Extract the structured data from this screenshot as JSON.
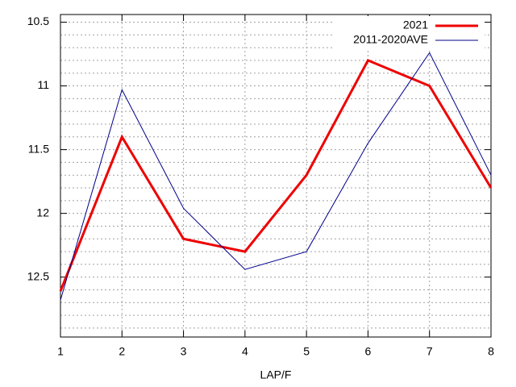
{
  "chart_data": {
    "type": "line",
    "x_label": "LAP/F",
    "x": [
      1,
      2,
      3,
      4,
      5,
      6,
      7,
      8
    ],
    "series": [
      {
        "name": "2021",
        "color": "#ee0000",
        "width": 3,
        "values": [
          12.61,
          11.4,
          12.2,
          12.3,
          11.7,
          10.8,
          11.0,
          11.8
        ]
      },
      {
        "name": "2011-2020AVE",
        "color": "#00008b",
        "width": 1,
        "values": [
          12.68,
          11.03,
          11.96,
          12.44,
          12.3,
          11.45,
          10.74,
          11.7
        ]
      }
    ],
    "xlim": [
      1,
      8
    ],
    "xticks": [
      1,
      2,
      3,
      4,
      5,
      6,
      7,
      8
    ],
    "ylim": [
      10.44,
      12.97
    ],
    "y_reversed": true,
    "yticks": [
      10.5,
      11,
      11.5,
      12,
      12.5
    ],
    "yminorticks": [
      10.6,
      10.7,
      10.8,
      10.9,
      11.1,
      11.2,
      11.3,
      11.4,
      11.6,
      11.7,
      11.8,
      11.9,
      12.1,
      12.2,
      12.3,
      12.4,
      12.6,
      12.7,
      12.8,
      12.9
    ],
    "grid": true,
    "legend": "top-right"
  }
}
